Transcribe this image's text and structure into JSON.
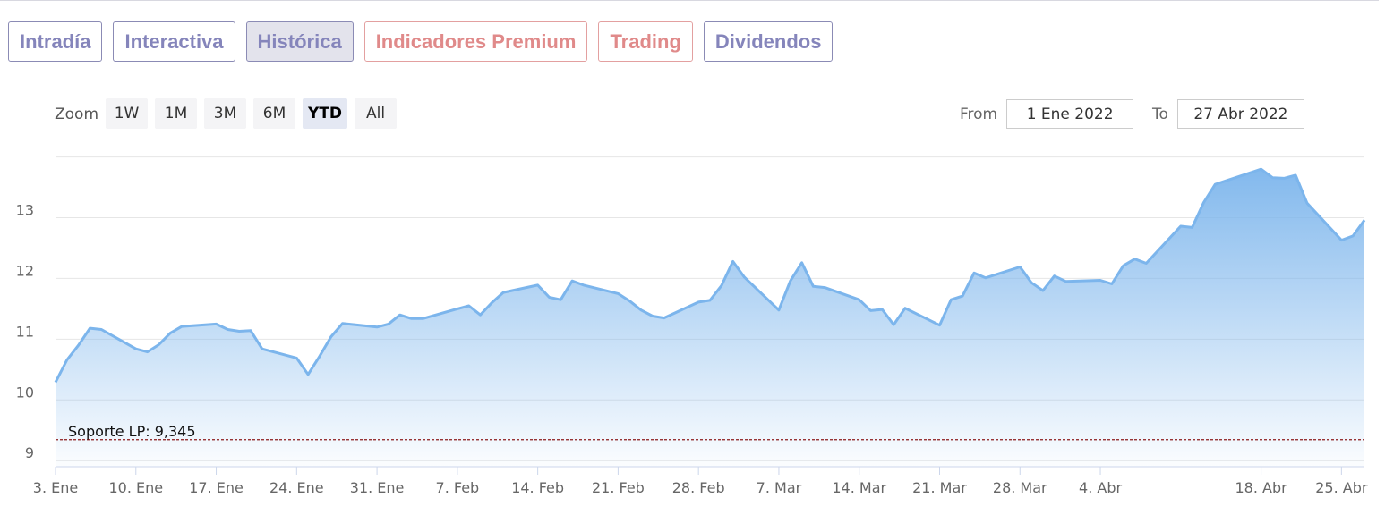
{
  "tabs": [
    {
      "label": "Intradía",
      "style": "purple"
    },
    {
      "label": "Interactiva",
      "style": "purple"
    },
    {
      "label": "Histórica",
      "style": "purple",
      "active": true
    },
    {
      "label": "Indicadores Premium",
      "style": "salmon"
    },
    {
      "label": "Trading",
      "style": "salmon"
    },
    {
      "label": "Dividendos",
      "style": "purple"
    }
  ],
  "zoom": {
    "label": "Zoom",
    "options": [
      "1W",
      "1M",
      "3M",
      "6M",
      "YTD",
      "All"
    ],
    "selected": "YTD"
  },
  "range": {
    "from_label": "From",
    "from_value": "1 Ene 2022",
    "to_label": "To",
    "to_value": "27 Abr 2022"
  },
  "colors": {
    "line": "#7cb5ec",
    "support_line": "#8b1a1a",
    "tab_purple": "#8585bb",
    "tab_salmon": "#e08a8a"
  },
  "chart_data": {
    "type": "area",
    "x_start": "2022-01-03",
    "y_range": [
      8.9,
      14.2
    ],
    "y_ticks": [
      9,
      10,
      11,
      12,
      13
    ],
    "x_ticks": [
      "3. Ene",
      "10. Ene",
      "17. Ene",
      "24. Ene",
      "31. Ene",
      "7. Feb",
      "14. Feb",
      "21. Feb",
      "28. Feb",
      "7. Mar",
      "14. Mar",
      "21. Mar",
      "28. Mar",
      "4. Abr",
      "18. Abr",
      "25. Abr"
    ],
    "grid": true,
    "support": {
      "label": "Soporte LP: 9,345",
      "value": 9.345
    },
    "series": [
      {
        "points": [
          [
            "2022-01-03",
            10.29
          ],
          [
            "2022-01-04",
            10.66
          ],
          [
            "2022-01-05",
            10.9
          ],
          [
            "2022-01-06",
            11.18
          ],
          [
            "2022-01-07",
            11.16
          ],
          [
            "2022-01-10",
            10.84
          ],
          [
            "2022-01-11",
            10.79
          ],
          [
            "2022-01-12",
            10.91
          ],
          [
            "2022-01-13",
            11.1
          ],
          [
            "2022-01-14",
            11.21
          ],
          [
            "2022-01-17",
            11.25
          ],
          [
            "2022-01-18",
            11.16
          ],
          [
            "2022-01-19",
            11.13
          ],
          [
            "2022-01-20",
            11.14
          ],
          [
            "2022-01-21",
            10.84
          ],
          [
            "2022-01-24",
            10.69
          ],
          [
            "2022-01-25",
            10.42
          ],
          [
            "2022-01-26",
            10.72
          ],
          [
            "2022-01-27",
            11.04
          ],
          [
            "2022-01-28",
            11.26
          ],
          [
            "2022-01-31",
            11.2
          ],
          [
            "2022-02-01",
            11.25
          ],
          [
            "2022-02-02",
            11.4
          ],
          [
            "2022-02-03",
            11.34
          ],
          [
            "2022-02-04",
            11.34
          ],
          [
            "2022-02-07",
            11.5
          ],
          [
            "2022-02-08",
            11.55
          ],
          [
            "2022-02-09",
            11.4
          ],
          [
            "2022-02-10",
            11.6
          ],
          [
            "2022-02-11",
            11.77
          ],
          [
            "2022-02-14",
            11.89
          ],
          [
            "2022-02-15",
            11.69
          ],
          [
            "2022-02-16",
            11.65
          ],
          [
            "2022-02-17",
            11.96
          ],
          [
            "2022-02-18",
            11.89
          ],
          [
            "2022-02-21",
            11.75
          ],
          [
            "2022-02-22",
            11.63
          ],
          [
            "2022-02-23",
            11.48
          ],
          [
            "2022-02-24",
            11.38
          ],
          [
            "2022-02-25",
            11.35
          ],
          [
            "2022-02-28",
            11.61
          ],
          [
            "2022-03-01",
            11.64
          ],
          [
            "2022-03-02",
            11.88
          ],
          [
            "2022-03-03",
            12.28
          ],
          [
            "2022-03-04",
            12.02
          ],
          [
            "2022-03-07",
            11.48
          ],
          [
            "2022-03-08",
            11.96
          ],
          [
            "2022-03-09",
            12.26
          ],
          [
            "2022-03-10",
            11.87
          ],
          [
            "2022-03-11",
            11.85
          ],
          [
            "2022-03-14",
            11.65
          ],
          [
            "2022-03-15",
            11.47
          ],
          [
            "2022-03-16",
            11.49
          ],
          [
            "2022-03-17",
            11.24
          ],
          [
            "2022-03-18",
            11.51
          ],
          [
            "2022-03-21",
            11.23
          ],
          [
            "2022-03-22",
            11.65
          ],
          [
            "2022-03-23",
            11.71
          ],
          [
            "2022-03-24",
            12.09
          ],
          [
            "2022-03-25",
            12.01
          ],
          [
            "2022-03-28",
            12.19
          ],
          [
            "2022-03-29",
            11.93
          ],
          [
            "2022-03-30",
            11.8
          ],
          [
            "2022-03-31",
            12.04
          ],
          [
            "2022-04-01",
            11.95
          ],
          [
            "2022-04-04",
            11.97
          ],
          [
            "2022-04-05",
            11.91
          ],
          [
            "2022-04-06",
            12.21
          ],
          [
            "2022-04-07",
            12.32
          ],
          [
            "2022-04-08",
            12.25
          ],
          [
            "2022-04-11",
            12.86
          ],
          [
            "2022-04-12",
            12.84
          ],
          [
            "2022-04-13",
            13.25
          ],
          [
            "2022-04-14",
            13.55
          ],
          [
            "2022-04-18",
            13.8
          ],
          [
            "2022-04-19",
            13.66
          ],
          [
            "2022-04-20",
            13.65
          ],
          [
            "2022-04-21",
            13.7
          ],
          [
            "2022-04-22",
            13.24
          ],
          [
            "2022-04-25",
            12.63
          ],
          [
            "2022-04-26",
            12.7
          ],
          [
            "2022-04-27",
            12.96
          ]
        ]
      }
    ]
  }
}
